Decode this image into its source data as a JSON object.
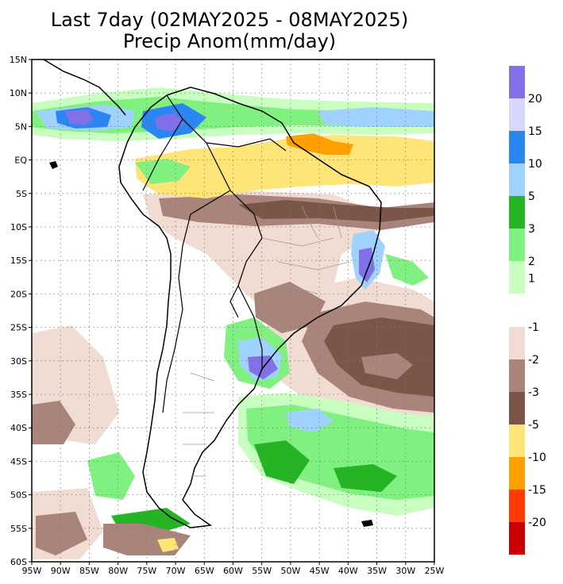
{
  "title_line1": "Last 7day (02MAY2025 - 08MAY2025)",
  "title_line2": "Precip Anom(mm/day)",
  "map": {
    "lon_range": [
      -95,
      -25
    ],
    "lat_range": [
      -60,
      15
    ],
    "lat_ticks": [
      {
        "lat": 15,
        "label": "15N"
      },
      {
        "lat": 10,
        "label": "10N"
      },
      {
        "lat": 5,
        "label": "5N"
      },
      {
        "lat": 0,
        "label": "EQ"
      },
      {
        "lat": -5,
        "label": "5S"
      },
      {
        "lat": -10,
        "label": "10S"
      },
      {
        "lat": -15,
        "label": "15S"
      },
      {
        "lat": -20,
        "label": "20S"
      },
      {
        "lat": -25,
        "label": "25S"
      },
      {
        "lat": -30,
        "label": "30S"
      },
      {
        "lat": -35,
        "label": "35S"
      },
      {
        "lat": -40,
        "label": "40S"
      },
      {
        "lat": -45,
        "label": "45S"
      },
      {
        "lat": -50,
        "label": "50S"
      },
      {
        "lat": -55,
        "label": "55S"
      },
      {
        "lat": -60,
        "label": "60S"
      }
    ],
    "lon_ticks": [
      {
        "lon": -95,
        "label": "95W"
      },
      {
        "lon": -90,
        "label": "90W"
      },
      {
        "lon": -85,
        "label": "85W"
      },
      {
        "lon": -80,
        "label": "80W"
      },
      {
        "lon": -75,
        "label": "75W"
      },
      {
        "lon": -70,
        "label": "70W"
      },
      {
        "lon": -65,
        "label": "65W"
      },
      {
        "lon": -60,
        "label": "60W"
      },
      {
        "lon": -55,
        "label": "55W"
      },
      {
        "lon": -50,
        "label": "50W"
      },
      {
        "lon": -45,
        "label": "45W"
      },
      {
        "lon": -40,
        "label": "40W"
      },
      {
        "lon": -35,
        "label": "35W"
      },
      {
        "lon": -30,
        "label": "30W"
      },
      {
        "lon": -25,
        "label": "25W"
      }
    ],
    "gridlines": "dotted"
  },
  "legend_wet": [
    {
      "label": "20",
      "color": "#8170e8"
    },
    {
      "label": "15",
      "color": "#d8d8ff"
    },
    {
      "label": "10",
      "color": "#2a86f0"
    },
    {
      "label": "5",
      "color": "#a0d2ff"
    },
    {
      "label": "3",
      "color": "#24b424"
    },
    {
      "label": "2",
      "color": "#80f080"
    },
    {
      "label": "1",
      "color": "#c8ffc0"
    }
  ],
  "legend_wet_top_color": "#8170e8",
  "legend_dry": [
    {
      "label": "-1",
      "color": "#f0dcd2"
    },
    {
      "label": "-2",
      "color": "#a8847a"
    },
    {
      "label": "-3",
      "color": "#7a5548"
    },
    {
      "label": "-5",
      "color": "#ffe478"
    },
    {
      "label": "-10",
      "color": "#ffa000"
    },
    {
      "label": "-15",
      "color": "#ff3c00"
    },
    {
      "label": "-20",
      "color": "#c80000"
    }
  ]
}
